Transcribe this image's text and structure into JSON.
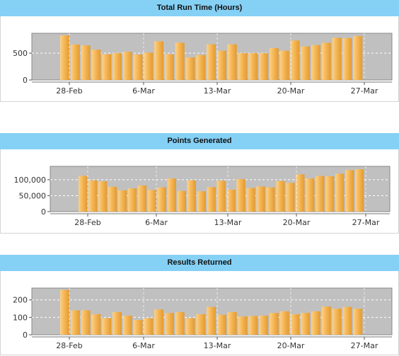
{
  "chart_data": [
    {
      "type": "bar",
      "title": "Total Run Time (Hours)",
      "x_tick_labels": [
        "28-Feb",
        "6-Mar",
        "13-Mar",
        "20-Mar",
        "27-Mar"
      ],
      "y_tick_labels": [
        "0",
        "500"
      ],
      "y_ticks": [
        0,
        500
      ],
      "ylim": [
        0,
        870
      ],
      "grid": true,
      "bar_color": "#f5b656",
      "plot_background": "#c0c0c0",
      "values": [
        830,
        660,
        645,
        565,
        480,
        500,
        525,
        475,
        510,
        720,
        480,
        695,
        420,
        465,
        665,
        545,
        665,
        500,
        500,
        500,
        595,
        545,
        735,
        625,
        650,
        695,
        785,
        780,
        820
      ]
    },
    {
      "type": "bar",
      "title": "Points Generated",
      "x_tick_labels": [
        "28-Feb",
        "6-Mar",
        "13-Mar",
        "20-Mar",
        "27-Mar"
      ],
      "y_tick_labels": [
        "0",
        "50,000",
        "100,000"
      ],
      "y_ticks": [
        0,
        50000,
        100000
      ],
      "ylim": [
        0,
        142000
      ],
      "grid": true,
      "bar_color": "#f5b656",
      "plot_background": "#c0c0c0",
      "values": [
        112000,
        98000,
        95000,
        78000,
        67000,
        73000,
        82000,
        68000,
        76000,
        104000,
        65000,
        98000,
        64000,
        77000,
        97000,
        69000,
        102000,
        74000,
        79000,
        76000,
        96000,
        90000,
        117000,
        104000,
        112000,
        111000,
        119000,
        130000,
        133000
      ]
    },
    {
      "type": "bar",
      "title": "Results Returned",
      "x_tick_labels": [
        "28-Feb",
        "6-Mar",
        "13-Mar",
        "20-Mar",
        "27-Mar"
      ],
      "y_tick_labels": [
        "0",
        "100",
        "200"
      ],
      "y_ticks": [
        0,
        100,
        200
      ],
      "ylim": [
        0,
        268
      ],
      "grid": true,
      "bar_color": "#f5b656",
      "plot_background": "#c0c0c0",
      "values": [
        258,
        140,
        140,
        118,
        95,
        130,
        110,
        85,
        95,
        145,
        125,
        130,
        95,
        118,
        160,
        115,
        130,
        105,
        108,
        110,
        125,
        135,
        118,
        125,
        135,
        162,
        150,
        160,
        150
      ]
    }
  ]
}
